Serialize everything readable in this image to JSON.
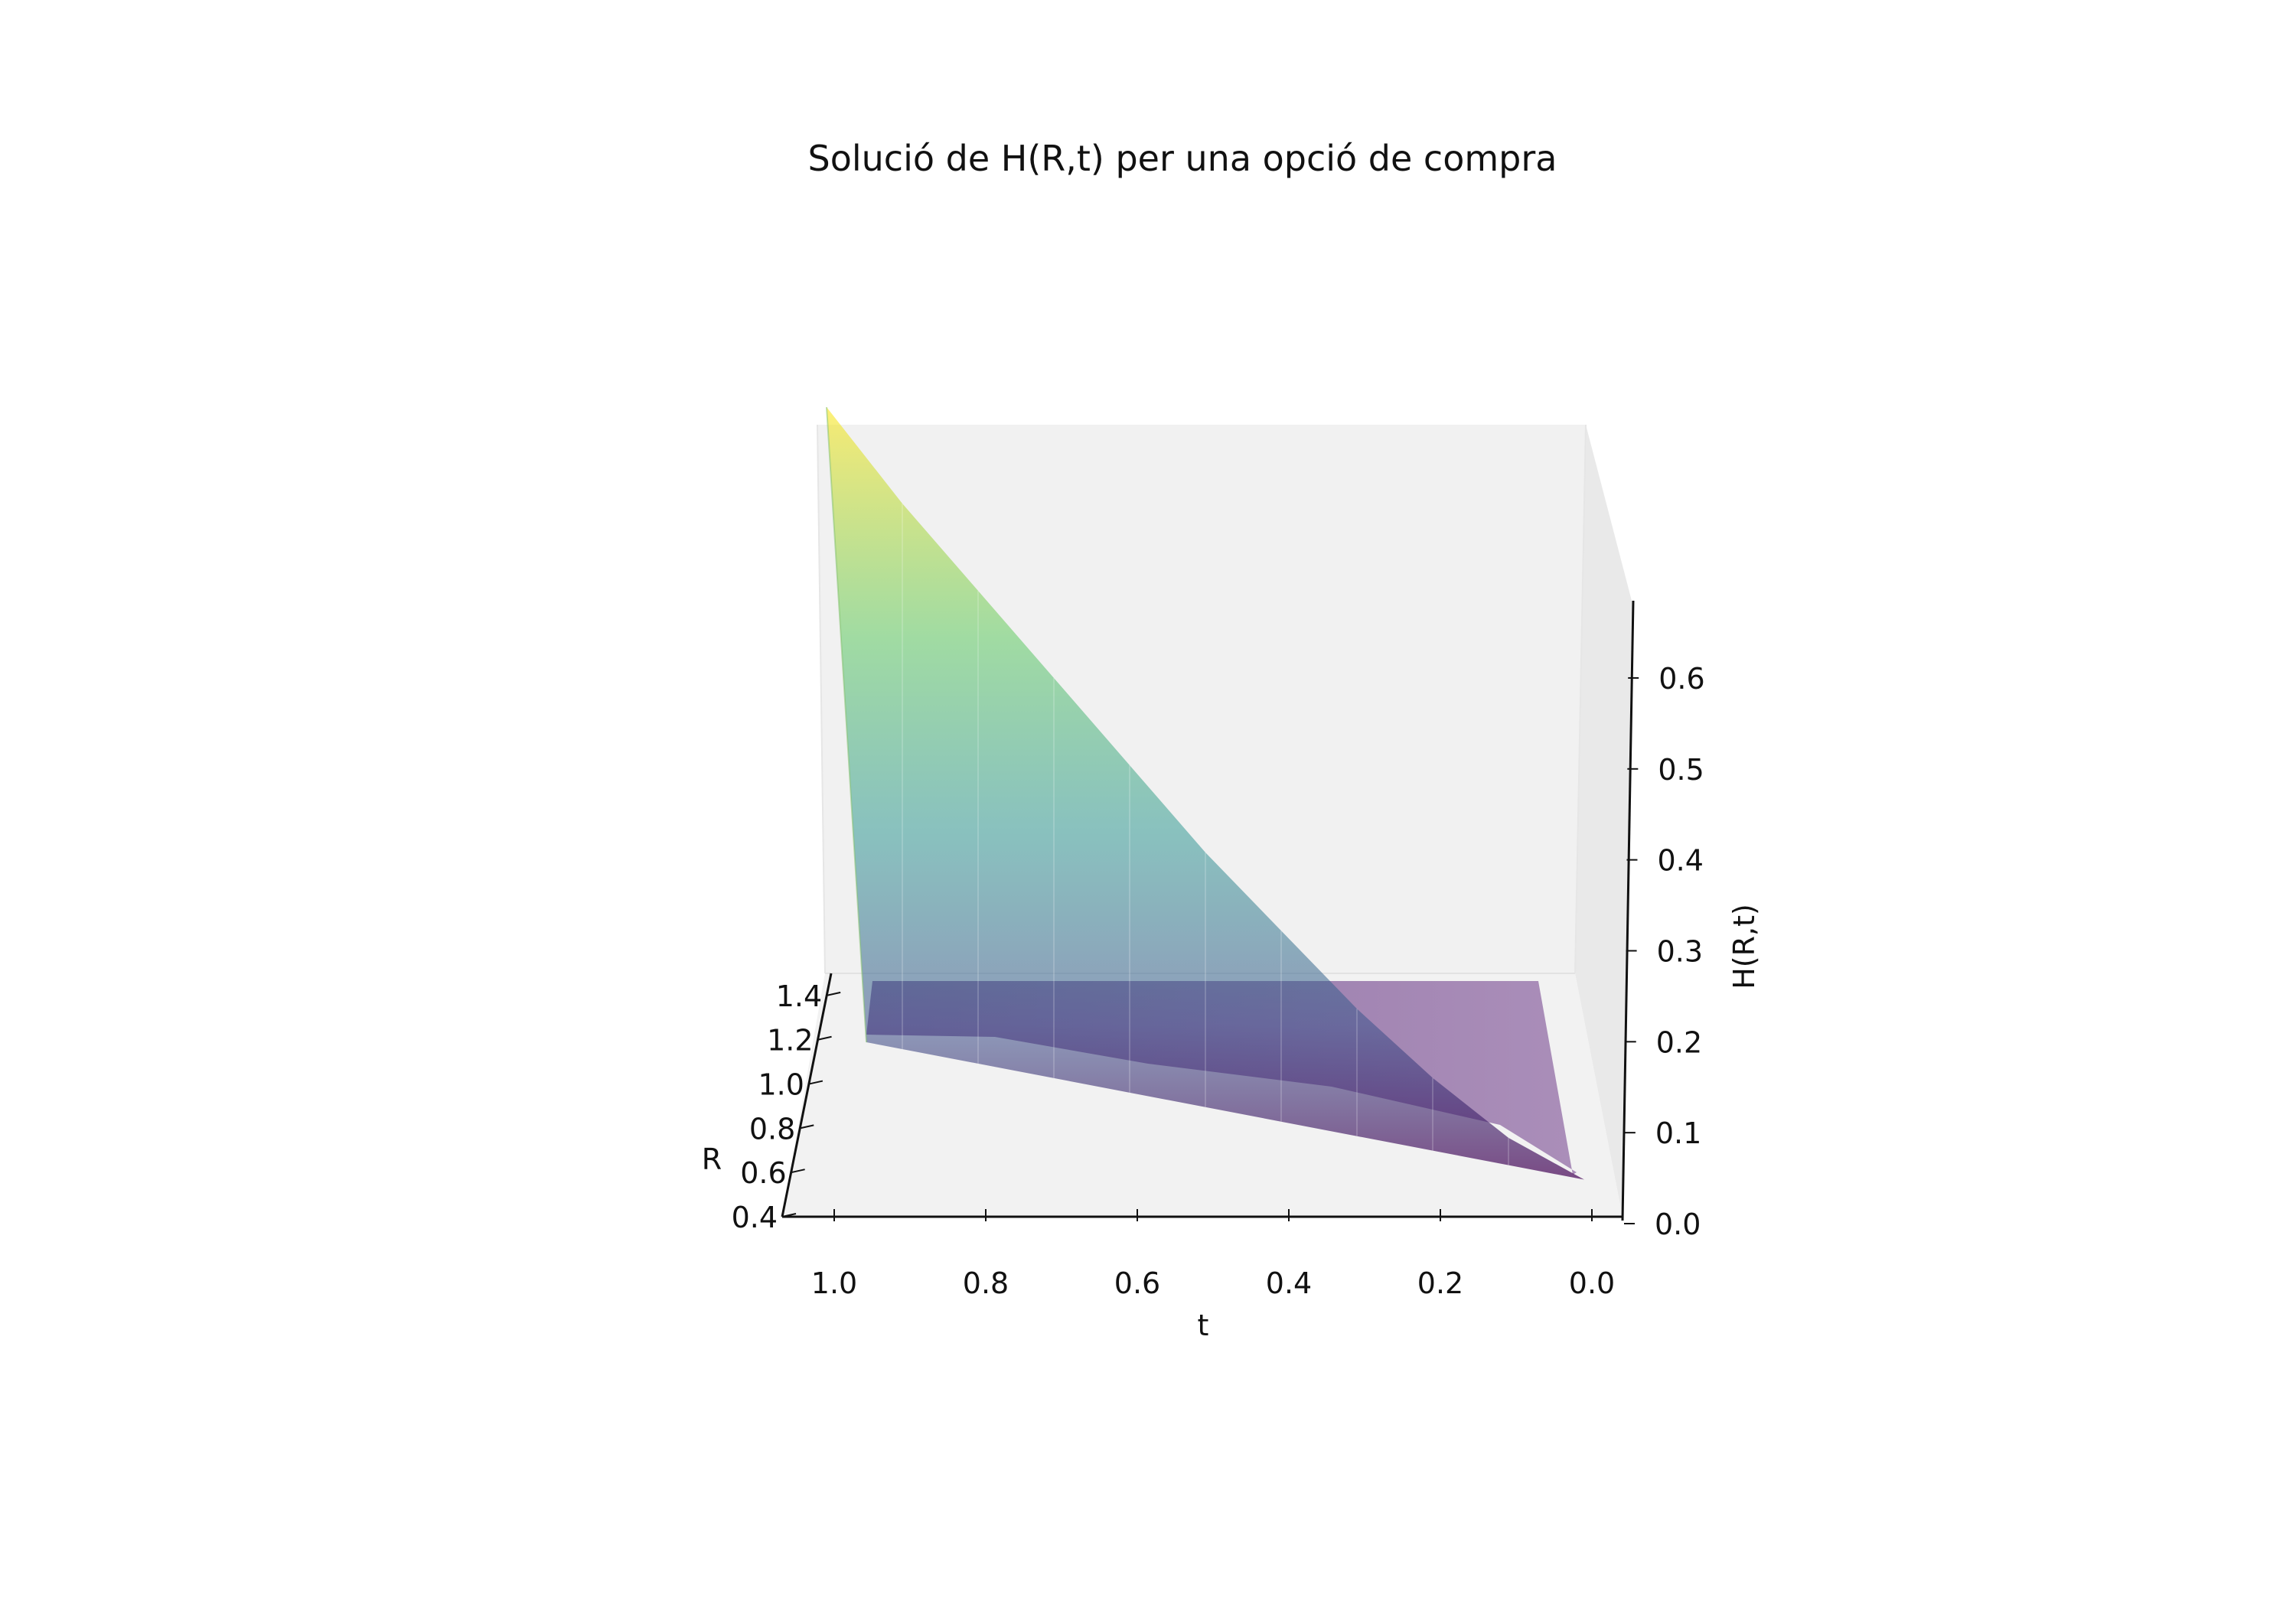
{
  "chart_data": {
    "type": "surface",
    "title": "Solució de H(R,t) per una opció de compra",
    "xlabel": "t",
    "ylabel": "R",
    "zlabel": "H(R,t)",
    "t_ticks": [
      "1.0",
      "0.8",
      "0.6",
      "0.4",
      "0.2",
      "0.0"
    ],
    "r_ticks": [
      "0.4",
      "0.6",
      "0.8",
      "1.0",
      "1.2",
      "1.4"
    ],
    "z_ticks": [
      "0.0",
      "0.1",
      "0.2",
      "0.3",
      "0.4",
      "0.5",
      "0.6"
    ],
    "t_range": [
      0,
      1
    ],
    "r_range": [
      0.4,
      1.5
    ],
    "z_range": [
      0,
      0.69
    ],
    "colormap": "viridis",
    "surface_alpha": 0.55,
    "grid": false,
    "surface_front_edge": {
      "t": [
        1.0,
        0.9,
        0.8,
        0.7,
        0.6,
        0.5,
        0.4,
        0.3,
        0.2,
        0.1,
        0.0
      ],
      "H": [
        0.69,
        0.6,
        0.52,
        0.44,
        0.36,
        0.28,
        0.21,
        0.14,
        0.08,
        0.03,
        0.0
      ]
    }
  }
}
